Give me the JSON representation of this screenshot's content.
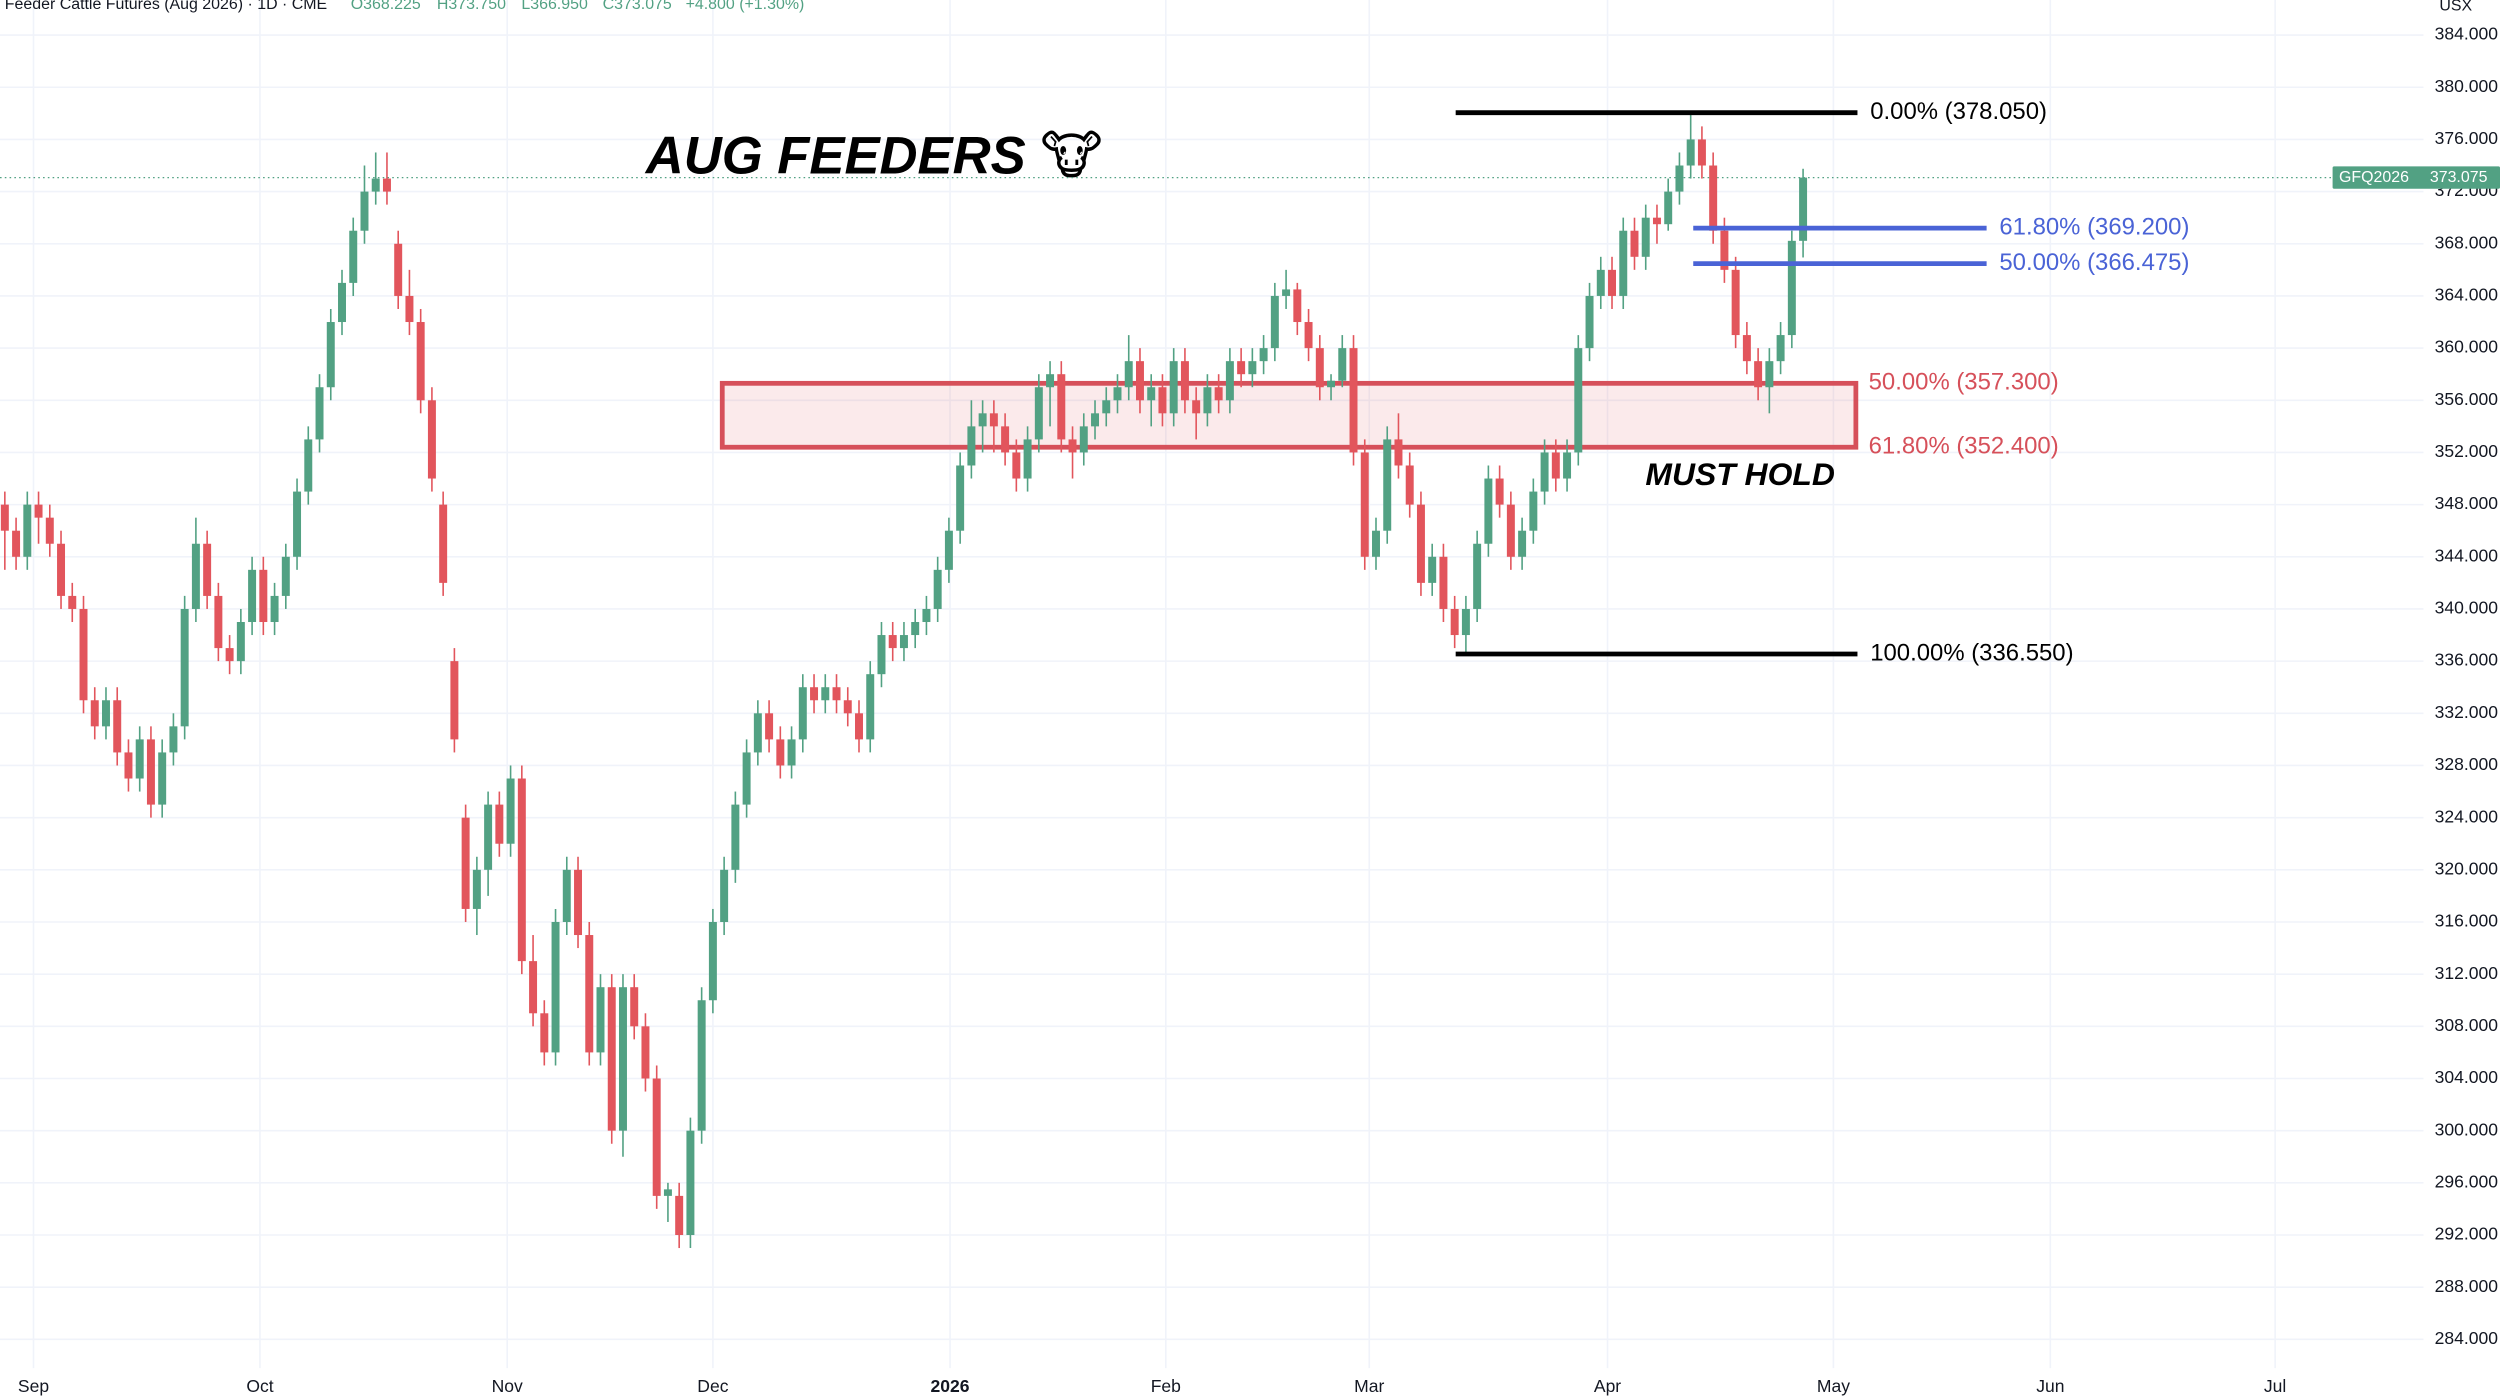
{
  "chart_data": {
    "type": "candlestick",
    "header": [
      "Feeder Cattle Futures (Aug 2026) · 1D · CME",
      "O368.225",
      "H373.750",
      "L366.950",
      "C373.075",
      "+4.800 (+1.30%)"
    ],
    "currency": "USX",
    "title": "AUG FEEDERS 🐮",
    "annotation": "MUST HOLD",
    "symbol": "GFQ2026",
    "last_price": 373.075,
    "up_color": "#52a183",
    "down_color": "#e2555c",
    "xlim": [
      -0.43,
      215.2
    ],
    "xticks": [
      {
        "value": 2.55,
        "label": "Sep"
      },
      {
        "value": 22.7,
        "label": "Oct"
      },
      {
        "value": 44.7,
        "label": "Nov"
      },
      {
        "value": 63.0,
        "label": "Dec"
      },
      {
        "value": 84.1,
        "label": "2026"
      },
      {
        "value": 103.3,
        "label": "Feb"
      },
      {
        "value": 121.4,
        "label": "Mar"
      },
      {
        "value": 142.6,
        "label": "Apr"
      },
      {
        "value": 162.7,
        "label": "May"
      },
      {
        "value": 182.0,
        "label": "Jun"
      },
      {
        "value": 202.0,
        "label": "Jul"
      }
    ],
    "ylim": [
      279.35,
      386.69
    ],
    "yticks": [
      {
        "value": 284,
        "label": "284.000"
      },
      {
        "value": 288,
        "label": "288.000"
      },
      {
        "value": 292,
        "label": "292.000"
      },
      {
        "value": 296,
        "label": "296.000"
      },
      {
        "value": 300,
        "label": "300.000"
      },
      {
        "value": 304,
        "label": "304.000"
      },
      {
        "value": 308,
        "label": "308.000"
      },
      {
        "value": 312,
        "label": "312.000"
      },
      {
        "value": 316,
        "label": "316.000"
      },
      {
        "value": 320,
        "label": "320.000"
      },
      {
        "value": 324,
        "label": "324.000"
      },
      {
        "value": 328,
        "label": "328.000"
      },
      {
        "value": 332,
        "label": "332.000"
      },
      {
        "value": 336,
        "label": "336.000"
      },
      {
        "value": 340,
        "label": "340.000"
      },
      {
        "value": 344,
        "label": "344.000"
      },
      {
        "value": 348,
        "label": "348.000"
      },
      {
        "value": 352,
        "label": "352.000"
      },
      {
        "value": 356,
        "label": "356.000"
      },
      {
        "value": 360,
        "label": "360.000"
      },
      {
        "value": 364,
        "label": "364.000"
      },
      {
        "value": 368,
        "label": "368.000"
      },
      {
        "value": 372,
        "label": "372.000"
      },
      {
        "value": 376,
        "label": "376.000"
      },
      {
        "value": 380,
        "label": "380.000"
      },
      {
        "value": 384,
        "label": "384.000"
      }
    ],
    "grid": true,
    "fib_levels": [
      {
        "value": 378.05,
        "label": "0.00% (378.050)",
        "color": "#000000"
      },
      {
        "value": 369.2,
        "label": "61.80% (369.200)",
        "color": "#4a63d6"
      },
      {
        "value": 366.475,
        "label": "50.00% (366.475)",
        "color": "#4a63d6"
      },
      {
        "value": 357.3,
        "label": "50.00% (357.300)",
        "color": "#d6505a"
      },
      {
        "value": 352.4,
        "label": "61.80% (352.400)",
        "color": "#d6505a"
      },
      {
        "value": 336.55,
        "label": "100.00% (336.550)",
        "color": "#000000"
      }
    ],
    "ohlc": [
      [
        348,
        349,
        343,
        346
      ],
      [
        346,
        347,
        343,
        344
      ],
      [
        344,
        349,
        343,
        348
      ],
      [
        348,
        349,
        345,
        347
      ],
      [
        347,
        348,
        344,
        345
      ],
      [
        345,
        346,
        340,
        341
      ],
      [
        341,
        342,
        339,
        340
      ],
      [
        340,
        341,
        332,
        333
      ],
      [
        333,
        334,
        330,
        331
      ],
      [
        331,
        334,
        330,
        333
      ],
      [
        333,
        334,
        328,
        329
      ],
      [
        329,
        330,
        326,
        327
      ],
      [
        327,
        331,
        326,
        330
      ],
      [
        330,
        331,
        324,
        325
      ],
      [
        325,
        330,
        324,
        329
      ],
      [
        329,
        332,
        328,
        331
      ],
      [
        331,
        341,
        330,
        340
      ],
      [
        340,
        347,
        339,
        345
      ],
      [
        345,
        346,
        340,
        341
      ],
      [
        341,
        342,
        336,
        337
      ],
      [
        337,
        338,
        335,
        336
      ],
      [
        336,
        340,
        335,
        339
      ],
      [
        339,
        344,
        338,
        343
      ],
      [
        343,
        344,
        338,
        339
      ],
      [
        339,
        342,
        338,
        341
      ],
      [
        341,
        345,
        340,
        344
      ],
      [
        344,
        350,
        343,
        349
      ],
      [
        349,
        354,
        348,
        353
      ],
      [
        353,
        358,
        352,
        357
      ],
      [
        357,
        363,
        356,
        362
      ],
      [
        362,
        366,
        361,
        365
      ],
      [
        365,
        370,
        364,
        369
      ],
      [
        369,
        374,
        368,
        372
      ],
      [
        372,
        375,
        371,
        373
      ],
      [
        373,
        375,
        371,
        372
      ],
      [
        368,
        369,
        363,
        364
      ],
      [
        364,
        366,
        361,
        362
      ],
      [
        362,
        363,
        355,
        356
      ],
      [
        356,
        357,
        349,
        350
      ],
      [
        348,
        349,
        341,
        342
      ],
      [
        336,
        337,
        329,
        330
      ],
      [
        324,
        325,
        316,
        317
      ],
      [
        317,
        321,
        315,
        320
      ],
      [
        320,
        326,
        318,
        325
      ],
      [
        325,
        326,
        321,
        322
      ],
      [
        322,
        328,
        321,
        327
      ],
      [
        327,
        328,
        312,
        313
      ],
      [
        313,
        315,
        308,
        309
      ],
      [
        309,
        310,
        305,
        306
      ],
      [
        306,
        317,
        305,
        316
      ],
      [
        316,
        321,
        315,
        320
      ],
      [
        320,
        321,
        314,
        315
      ],
      [
        315,
        316,
        305,
        306
      ],
      [
        306,
        312,
        305,
        311
      ],
      [
        311,
        312,
        299,
        300
      ],
      [
        300,
        312,
        298,
        311
      ],
      [
        311,
        312,
        307,
        308
      ],
      [
        308,
        309,
        303,
        304
      ],
      [
        304,
        305,
        294,
        295
      ],
      [
        295,
        296,
        293,
        295.5
      ],
      [
        295,
        296,
        291,
        292
      ],
      [
        292,
        301,
        291,
        300
      ],
      [
        300,
        311,
        299,
        310
      ],
      [
        310,
        317,
        309,
        316
      ],
      [
        316,
        321,
        315,
        320
      ],
      [
        320,
        326,
        319,
        325
      ],
      [
        325,
        330,
        324,
        329
      ],
      [
        329,
        333,
        328,
        332
      ],
      [
        332,
        333,
        329,
        330
      ],
      [
        330,
        331,
        327,
        328
      ],
      [
        328,
        331,
        327,
        330
      ],
      [
        330,
        335,
        329,
        334
      ],
      [
        334,
        335,
        332,
        333
      ],
      [
        333,
        335,
        332,
        334
      ],
      [
        334,
        335,
        332,
        333
      ],
      [
        333,
        334,
        331,
        332
      ],
      [
        332,
        333,
        329,
        330
      ],
      [
        330,
        336,
        329,
        335
      ],
      [
        335,
        339,
        334,
        338
      ],
      [
        338,
        339,
        336,
        337
      ],
      [
        337,
        339,
        336,
        338
      ],
      [
        338,
        340,
        337,
        339
      ],
      [
        339,
        341,
        338,
        340
      ],
      [
        340,
        344,
        339,
        343
      ],
      [
        343,
        347,
        342,
        346
      ],
      [
        346,
        352,
        345,
        351
      ],
      [
        351,
        356,
        350,
        354
      ],
      [
        354,
        356,
        352,
        355
      ],
      [
        355,
        356,
        352,
        354
      ],
      [
        354,
        355,
        351,
        352
      ],
      [
        352,
        353,
        349,
        350
      ],
      [
        350,
        354,
        349,
        353
      ],
      [
        353,
        358,
        352,
        357
      ],
      [
        357,
        359,
        354,
        358
      ],
      [
        358,
        359,
        352,
        353
      ],
      [
        353,
        354,
        350,
        352
      ],
      [
        352,
        355,
        351,
        354
      ],
      [
        354,
        356,
        353,
        355
      ],
      [
        355,
        357,
        354,
        356
      ],
      [
        356,
        358,
        355,
        357
      ],
      [
        357,
        361,
        356,
        359
      ],
      [
        359,
        360,
        355,
        356
      ],
      [
        356,
        358,
        354,
        357
      ],
      [
        357,
        358,
        354,
        355
      ],
      [
        355,
        360,
        354,
        359
      ],
      [
        359,
        360,
        355,
        356
      ],
      [
        356,
        357,
        353,
        355
      ],
      [
        355,
        358,
        354,
        357
      ],
      [
        357,
        358,
        355,
        356
      ],
      [
        356,
        360,
        355,
        359
      ],
      [
        359,
        360,
        357,
        358
      ],
      [
        358,
        360,
        357,
        359
      ],
      [
        359,
        361,
        358,
        360
      ],
      [
        360,
        365,
        359,
        364
      ],
      [
        364,
        366,
        363,
        364.5
      ],
      [
        364.5,
        365,
        361,
        362
      ],
      [
        362,
        363,
        359,
        360
      ],
      [
        360,
        361,
        356,
        357
      ],
      [
        357,
        358,
        356,
        357.5
      ],
      [
        357.5,
        361,
        357,
        360
      ],
      [
        360,
        361,
        351,
        352
      ],
      [
        352,
        353,
        343,
        344
      ],
      [
        344,
        347,
        343,
        346
      ],
      [
        346,
        354,
        345,
        353
      ],
      [
        353,
        355,
        350,
        351
      ],
      [
        351,
        352,
        347,
        348
      ],
      [
        348,
        349,
        341,
        342
      ],
      [
        342,
        345,
        341,
        344
      ],
      [
        344,
        345,
        339,
        340
      ],
      [
        340,
        341,
        337,
        338
      ],
      [
        338,
        341,
        336.55,
        340
      ],
      [
        340,
        346,
        339,
        345
      ],
      [
        345,
        351,
        344,
        350
      ],
      [
        350,
        351,
        347,
        348
      ],
      [
        348,
        349,
        343,
        344
      ],
      [
        344,
        347,
        343,
        346
      ],
      [
        346,
        350,
        345,
        349
      ],
      [
        349,
        353,
        348,
        352
      ],
      [
        352,
        353,
        349,
        350
      ],
      [
        350,
        353,
        349,
        352
      ],
      [
        352,
        361,
        351,
        360
      ],
      [
        360,
        365,
        359,
        364
      ],
      [
        364,
        367,
        363,
        366
      ],
      [
        366,
        367,
        363,
        364
      ],
      [
        364,
        370,
        363,
        369
      ],
      [
        369,
        370,
        366,
        367
      ],
      [
        367,
        371,
        366,
        370
      ],
      [
        370,
        371,
        368,
        369.5
      ],
      [
        369.5,
        373,
        369,
        372
      ],
      [
        372,
        375,
        371,
        374
      ],
      [
        374,
        378.05,
        373,
        376
      ],
      [
        376,
        377,
        373,
        374
      ],
      [
        374,
        375,
        368,
        369
      ],
      [
        369,
        370,
        365,
        366
      ],
      [
        366,
        367,
        360,
        361
      ],
      [
        361,
        362,
        358,
        359
      ],
      [
        359,
        360,
        356,
        357
      ],
      [
        357,
        360,
        355,
        359
      ],
      [
        359,
        362,
        358,
        361
      ],
      [
        361,
        369,
        360,
        368.225
      ],
      [
        368.225,
        373.75,
        366.95,
        373.075
      ]
    ]
  }
}
